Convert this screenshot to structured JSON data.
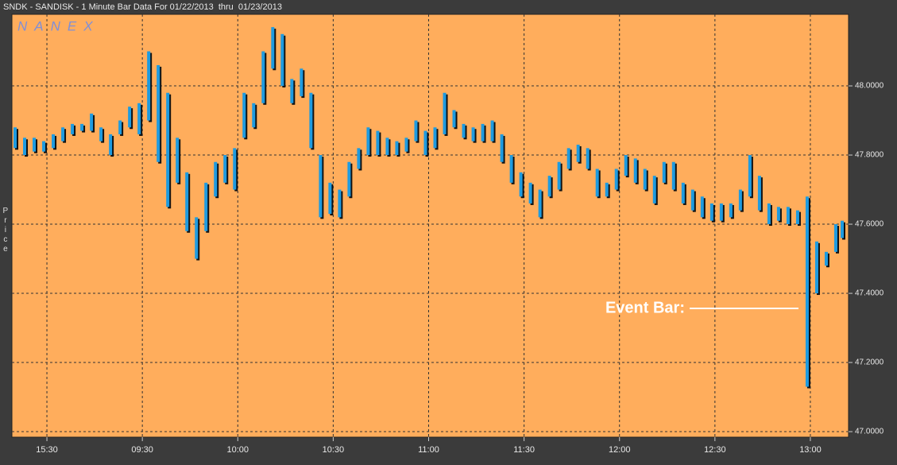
{
  "chart_data": {
    "type": "range-bar",
    "title": "SNDK - SANDISK - 1 Minute Bar Data For 01/22/2013  thru  01/23/2013",
    "watermark": "NANEX",
    "y_label": "Price",
    "annotation": "Event Bar:",
    "color": "#1e9be0",
    "background": "#ffad5c",
    "grid": true,
    "xlim": [
      -11,
      252
    ],
    "xticks": [
      {
        "value": 0,
        "label": "15:30"
      },
      {
        "value": 30,
        "label": "09:30"
      },
      {
        "value": 60,
        "label": "10:00"
      },
      {
        "value": 90,
        "label": "10:30"
      },
      {
        "value": 120,
        "label": "11:00"
      },
      {
        "value": 150,
        "label": "11:30"
      },
      {
        "value": 180,
        "label": "12:00"
      },
      {
        "value": 210,
        "label": "12:30"
      },
      {
        "value": 240,
        "label": "13:00"
      }
    ],
    "ylim": [
      46.984,
      48.207
    ],
    "yticks": [
      {
        "value": 47.0,
        "label": "47.0000"
      },
      {
        "value": 47.2,
        "label": "47.2000"
      },
      {
        "value": 47.4,
        "label": "47.4000"
      },
      {
        "value": 47.6,
        "label": "47.6000"
      },
      {
        "value": 47.8,
        "label": "47.8000"
      },
      {
        "value": 48.0,
        "label": "48.0000"
      }
    ],
    "x": [
      -10,
      -7,
      -4,
      -1,
      2,
      5,
      8,
      11,
      14,
      17,
      20,
      23,
      26,
      29,
      32,
      35,
      38,
      41,
      44,
      47,
      50,
      53,
      56,
      59,
      62,
      65,
      68,
      71,
      74,
      77,
      80,
      83,
      86,
      89,
      92,
      95,
      98,
      101,
      104,
      107,
      110,
      113,
      116,
      119,
      122,
      125,
      128,
      131,
      134,
      137,
      140,
      143,
      146,
      149,
      152,
      155,
      158,
      161,
      164,
      167,
      170,
      173,
      176,
      179,
      182,
      185,
      188,
      191,
      194,
      197,
      200,
      203,
      206,
      209,
      212,
      215,
      218,
      221,
      224,
      227,
      230,
      233,
      236,
      239,
      242,
      245,
      248,
      250
    ],
    "high": [
      47.88,
      47.85,
      47.85,
      47.84,
      47.86,
      47.88,
      47.89,
      47.89,
      47.92,
      47.88,
      47.86,
      47.9,
      47.94,
      47.95,
      48.1,
      48.06,
      47.98,
      47.85,
      47.75,
      47.62,
      47.72,
      47.78,
      47.8,
      47.82,
      47.98,
      47.95,
      48.1,
      48.17,
      48.15,
      48.02,
      48.05,
      47.98,
      47.8,
      47.72,
      47.7,
      47.78,
      47.82,
      47.88,
      47.87,
      47.85,
      47.84,
      47.85,
      47.9,
      47.87,
      47.88,
      47.98,
      47.93,
      47.89,
      47.88,
      47.89,
      47.9,
      47.86,
      47.8,
      47.75,
      47.72,
      47.7,
      47.74,
      47.78,
      47.82,
      47.83,
      47.82,
      47.76,
      47.72,
      47.76,
      47.8,
      47.79,
      47.76,
      47.74,
      47.78,
      47.78,
      47.72,
      47.7,
      47.68,
      47.66,
      47.66,
      47.66,
      47.7,
      47.8,
      47.74,
      47.66,
      47.65,
      47.65,
      47.64,
      47.68,
      47.55,
      47.52,
      47.6,
      47.61
    ],
    "low": [
      47.82,
      47.8,
      47.81,
      47.81,
      47.82,
      47.84,
      47.86,
      47.87,
      47.87,
      47.84,
      47.8,
      47.86,
      47.88,
      47.86,
      47.9,
      47.78,
      47.65,
      47.72,
      47.58,
      47.5,
      47.58,
      47.68,
      47.72,
      47.7,
      47.85,
      47.88,
      47.95,
      48.05,
      48.0,
      47.95,
      47.97,
      47.82,
      47.62,
      47.63,
      47.62,
      47.68,
      47.76,
      47.8,
      47.8,
      47.8,
      47.8,
      47.81,
      47.84,
      47.8,
      47.82,
      47.86,
      47.88,
      47.85,
      47.84,
      47.84,
      47.84,
      47.78,
      47.72,
      47.68,
      47.66,
      47.62,
      47.68,
      47.7,
      47.76,
      47.78,
      47.76,
      47.68,
      47.68,
      47.7,
      47.74,
      47.72,
      47.7,
      47.66,
      47.72,
      47.7,
      47.66,
      47.64,
      47.62,
      47.61,
      47.61,
      47.62,
      47.64,
      47.68,
      47.64,
      47.6,
      47.61,
      47.6,
      47.6,
      47.13,
      47.4,
      47.48,
      47.52,
      47.56
    ]
  }
}
